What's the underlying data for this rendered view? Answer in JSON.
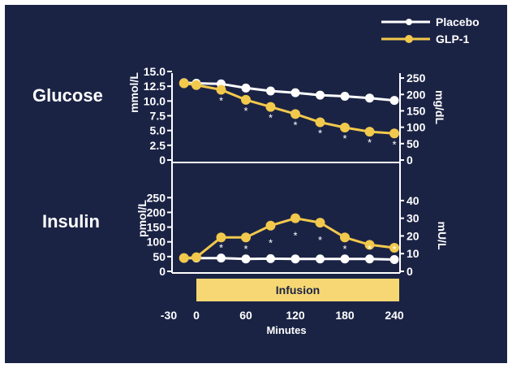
{
  "chart_data": [
    {
      "type": "line",
      "panel_label": "Glucose",
      "ylabel_left": "mmol/L",
      "ylabel_right": "mg/dL",
      "left_ticks": [
        "15.0",
        "12.5",
        "10.0",
        "7.5",
        "5.0",
        "2.5",
        "0"
      ],
      "right_ticks": [
        "250",
        "200",
        "150",
        "100",
        "50",
        "0"
      ],
      "ylim_left": [
        0,
        15
      ],
      "ylim_right": [
        0,
        270
      ],
      "x": [
        -15,
        0,
        30,
        60,
        90,
        120,
        150,
        180,
        210,
        240
      ],
      "series": [
        {
          "name": "Placebo",
          "values": [
            13.1,
            13.0,
            12.9,
            12.2,
            11.7,
            11.4,
            11.0,
            10.8,
            10.5,
            10.1
          ]
        },
        {
          "name": "GLP-1",
          "values": [
            13.0,
            12.7,
            11.9,
            10.2,
            9.0,
            7.8,
            6.4,
            5.5,
            4.8,
            4.5
          ]
        }
      ],
      "significance": [
        30,
        60,
        90,
        120,
        150,
        180,
        210,
        240
      ]
    },
    {
      "type": "line",
      "panel_label": "Insulin",
      "ylabel_left": "pmol/L",
      "ylabel_right": "mU/L",
      "left_ticks": [
        "250",
        "200",
        "150",
        "100",
        "50",
        "0"
      ],
      "right_ticks": [
        "40",
        "30",
        "20",
        "10",
        "0"
      ],
      "ylim_left": [
        0,
        270
      ],
      "ylim_right": [
        0,
        45
      ],
      "x": [
        -15,
        0,
        30,
        60,
        90,
        120,
        150,
        180,
        210,
        240
      ],
      "series": [
        {
          "name": "Placebo",
          "values": [
            45,
            45,
            45,
            42,
            43,
            42,
            42,
            42,
            42,
            40
          ]
        },
        {
          "name": "GLP-1",
          "values": [
            45,
            48,
            115,
            115,
            155,
            180,
            165,
            115,
            90,
            80
          ]
        }
      ],
      "significance": [
        30,
        60,
        90,
        120,
        150,
        180,
        210,
        240
      ]
    }
  ],
  "legend": [
    {
      "name": "Placebo",
      "color": "#ffffff"
    },
    {
      "name": "GLP-1",
      "color": "#f2c94c"
    }
  ],
  "x_axis": {
    "label": "Minutes",
    "ticks": [
      "-30",
      "0",
      "60",
      "120",
      "180",
      "240"
    ],
    "tick_values": [
      -30,
      0,
      60,
      120,
      180,
      240
    ]
  },
  "infusion": {
    "label": "Infusion",
    "start": 0,
    "end": 240
  },
  "sig_marker": "*",
  "colors": {
    "background": "#1b2345",
    "placebo": "#ffffff",
    "glp1": "#f2c94c",
    "infusion_bar": "#f6d773",
    "infusion_text": "#1b2345"
  }
}
